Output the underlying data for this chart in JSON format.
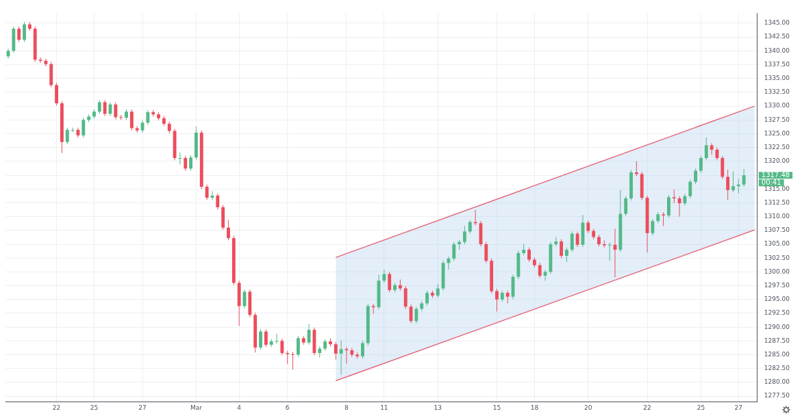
{
  "chart_data": {
    "type": "candlestick",
    "categories": [
      null,
      null,
      null,
      null,
      null,
      null,
      null,
      null,
      null,
      "22",
      null,
      null,
      null,
      null,
      null,
      null,
      "25",
      null,
      null,
      null,
      null,
      null,
      null,
      null,
      null,
      "27",
      null,
      null,
      null,
      null,
      null,
      null,
      null,
      null,
      null,
      "Mar",
      null,
      null,
      null,
      null,
      null,
      null,
      null,
      "4",
      null,
      null,
      null,
      null,
      null,
      null,
      null,
      null,
      "6",
      null,
      null,
      null,
      null,
      null,
      null,
      null,
      null,
      null,
      null,
      "8",
      null,
      null,
      null,
      null,
      null,
      null,
      "11",
      null,
      null,
      null,
      null,
      null,
      null,
      null,
      null,
      null,
      "13",
      null,
      null,
      null,
      null,
      null,
      null,
      null,
      null,
      null,
      null,
      "15",
      null,
      null,
      null,
      null,
      null,
      null,
      "18",
      null,
      null,
      null,
      null,
      null,
      null,
      null,
      null,
      null,
      "20",
      null,
      null,
      null,
      null,
      null,
      null,
      null,
      null,
      null,
      null,
      "22",
      null,
      null,
      null,
      null,
      null,
      null,
      null,
      null,
      null,
      "25",
      null,
      null,
      null,
      null,
      null,
      null,
      "27",
      null,
      null,
      null
    ],
    "ohlc": [
      [
        1339,
        1340.4,
        1338.6,
        1340
      ],
      [
        1340,
        1344.4,
        1339.6,
        1344
      ],
      [
        1344,
        1344.4,
        1341.6,
        1342
      ],
      [
        1342,
        1345.2,
        1341.6,
        1344.8
      ],
      [
        1344.8,
        1345.2,
        1343.6,
        1344
      ],
      [
        1344,
        1344.4,
        1338,
        1338.4
      ],
      [
        1338.4,
        1338.8,
        1337.8,
        1338.2
      ],
      [
        1338.2,
        1338.6,
        1337.2,
        1337.6
      ],
      [
        1337.6,
        1338,
        1333.4,
        1333.8
      ],
      [
        1333.8,
        1334.2,
        1330.1,
        1330.5
      ],
      [
        1330.5,
        1330.9,
        1321.5,
        1323.5
      ],
      [
        1323.5,
        1326.1,
        1323.1,
        1325.7
      ],
      [
        1325.7,
        1326.1,
        1325.3,
        1325.7
      ],
      [
        1325.7,
        1326.1,
        1324.3,
        1324.7
      ],
      [
        1324.7,
        1327.9,
        1324.3,
        1327.5
      ],
      [
        1327.5,
        1328.5,
        1327.1,
        1328.1
      ],
      [
        1328.1,
        1329.4,
        1327.7,
        1329
      ],
      [
        1329,
        1331.1,
        1328.6,
        1330.7
      ],
      [
        1330.7,
        1331.1,
        1328.2,
        1328.6
      ],
      [
        1328.6,
        1330.7,
        1328.2,
        1330.3
      ],
      [
        1330.3,
        1330.7,
        1327.6,
        1328
      ],
      [
        1328,
        1328.4,
        1327.5,
        1327.9
      ],
      [
        1327.9,
        1329.4,
        1327.5,
        1329
      ],
      [
        1329,
        1329.4,
        1325.6,
        1326
      ],
      [
        1326,
        1326.4,
        1325.2,
        1325.6
      ],
      [
        1325.6,
        1327.4,
        1325.2,
        1327
      ],
      [
        1327,
        1329.3,
        1326.6,
        1328.9
      ],
      [
        1328.9,
        1329.3,
        1328.1,
        1328.5
      ],
      [
        1328.5,
        1328.9,
        1327.4,
        1327.8
      ],
      [
        1327.8,
        1328.2,
        1326.4,
        1326.8
      ],
      [
        1326.8,
        1327.2,
        1325.1,
        1325.5
      ],
      [
        1325.5,
        1325.9,
        1320.2,
        1320.6
      ],
      [
        1320.6,
        1321.6,
        1319.4,
        1320.6
      ],
      [
        1320.6,
        1321,
        1318.3,
        1318.7
      ],
      [
        1318.7,
        1321.1,
        1318.3,
        1320.7
      ],
      [
        1320.7,
        1326.3,
        1320.3,
        1325.2
      ],
      [
        1325.2,
        1325.6,
        1315,
        1315.4
      ],
      [
        1315.4,
        1315.8,
        1313,
        1313.4
      ],
      [
        1313.4,
        1314.6,
        1313,
        1313.8
      ],
      [
        1313.8,
        1314.2,
        1311.3,
        1311.7
      ],
      [
        1311.7,
        1312.1,
        1307.6,
        1308
      ],
      [
        1308,
        1309.4,
        1305.7,
        1306.1
      ],
      [
        1306.1,
        1306.5,
        1297.6,
        1298
      ],
      [
        1298,
        1298.4,
        1290.2,
        1293.8
      ],
      [
        1293.8,
        1296.8,
        1293.4,
        1296.4
      ],
      [
        1296.4,
        1296.8,
        1291.8,
        1292.2
      ],
      [
        1292.2,
        1292.6,
        1285.4,
        1286.3
      ],
      [
        1286.3,
        1289.6,
        1285.9,
        1289.2
      ],
      [
        1289.2,
        1289.6,
        1286.4,
        1286.8
      ],
      [
        1286.8,
        1287.8,
        1286.4,
        1287.4
      ],
      [
        1287.4,
        1288.8,
        1287,
        1287.5
      ],
      [
        1287.5,
        1287.9,
        1284.9,
        1285.3
      ],
      [
        1285.3,
        1285.7,
        1283.3,
        1285.1
      ],
      [
        1285.1,
        1285.5,
        1282.3,
        1285
      ],
      [
        1285,
        1288.4,
        1284.6,
        1288
      ],
      [
        1288,
        1288.4,
        1286.8,
        1287.2
      ],
      [
        1287.2,
        1290.6,
        1286.8,
        1289.5
      ],
      [
        1289.5,
        1289.9,
        1284.9,
        1285.3
      ],
      [
        1285.3,
        1286.5,
        1284.5,
        1286.1
      ],
      [
        1286.1,
        1287.8,
        1285.7,
        1287.4
      ],
      [
        1287.4,
        1288,
        1286.5,
        1286.9
      ],
      [
        1286.9,
        1287.3,
        1284.1,
        1285.2
      ],
      [
        1285.2,
        1287.6,
        1281.4,
        1286
      ],
      [
        1286,
        1286.4,
        1283.4,
        1285.8
      ],
      [
        1285.8,
        1286.2,
        1284.6,
        1285
      ],
      [
        1285,
        1285.4,
        1284.3,
        1284.7
      ],
      [
        1284.7,
        1287.5,
        1284.3,
        1287.1
      ],
      [
        1287.1,
        1294.2,
        1286.7,
        1293.8
      ],
      [
        1293.8,
        1294.2,
        1292.4,
        1293.6
      ],
      [
        1293.6,
        1299.5,
        1293.2,
        1298.4
      ],
      [
        1298.4,
        1300.4,
        1298,
        1299.6
      ],
      [
        1299.6,
        1300,
        1296.3,
        1296.7
      ],
      [
        1296.7,
        1298,
        1296.3,
        1297.6
      ],
      [
        1297.6,
        1298.6,
        1296.6,
        1297
      ],
      [
        1297,
        1297.4,
        1293.3,
        1293.7
      ],
      [
        1293.7,
        1294.1,
        1290.7,
        1291.1
      ],
      [
        1291.1,
        1293.7,
        1290.7,
        1293.3
      ],
      [
        1293.3,
        1294.7,
        1292.9,
        1294.3
      ],
      [
        1294.3,
        1296.6,
        1293.9,
        1296.2
      ],
      [
        1296.2,
        1296.6,
        1295.3,
        1295.7
      ],
      [
        1295.7,
        1297.8,
        1295.3,
        1297
      ],
      [
        1297,
        1302,
        1296.6,
        1301.6
      ],
      [
        1301.6,
        1302.8,
        1300.4,
        1302.4
      ],
      [
        1302.4,
        1305.4,
        1302,
        1305
      ],
      [
        1305,
        1305.8,
        1304,
        1305.4
      ],
      [
        1305.4,
        1308.3,
        1305,
        1307.3
      ],
      [
        1307.3,
        1309.4,
        1306.9,
        1309
      ],
      [
        1309,
        1311.2,
        1308.4,
        1308.8
      ],
      [
        1308.8,
        1309.2,
        1304.6,
        1305
      ],
      [
        1305,
        1305.4,
        1301.6,
        1302
      ],
      [
        1302,
        1302.4,
        1296.1,
        1296.5
      ],
      [
        1296.5,
        1296.9,
        1292.8,
        1295
      ],
      [
        1295,
        1296.6,
        1294.6,
        1296.2
      ],
      [
        1296.2,
        1296.6,
        1294.3,
        1295.5
      ],
      [
        1295.5,
        1299.5,
        1295.1,
        1299.1
      ],
      [
        1299.1,
        1303.8,
        1298.7,
        1303.4
      ],
      [
        1303.4,
        1305.1,
        1303,
        1304
      ],
      [
        1304,
        1304.4,
        1301.8,
        1302.2
      ],
      [
        1302.2,
        1302.6,
        1300.8,
        1301.2
      ],
      [
        1301.2,
        1301.6,
        1298.9,
        1299.3
      ],
      [
        1299.3,
        1300.4,
        1298.4,
        1300
      ],
      [
        1300,
        1305.4,
        1299.6,
        1305
      ],
      [
        1305,
        1306.3,
        1304.6,
        1305.5
      ],
      [
        1305.5,
        1305.9,
        1302.5,
        1302.9
      ],
      [
        1302.9,
        1304.4,
        1301.8,
        1304
      ],
      [
        1304,
        1307.3,
        1303.6,
        1306.9
      ],
      [
        1306.9,
        1307.3,
        1304.5,
        1304.9
      ],
      [
        1304.9,
        1310.3,
        1304.5,
        1308.9
      ],
      [
        1308.9,
        1309.3,
        1307,
        1307.4
      ],
      [
        1307.4,
        1307.8,
        1305.9,
        1306.3
      ],
      [
        1306.3,
        1306.7,
        1304.6,
        1305
      ],
      [
        1305,
        1305.7,
        1304.4,
        1304.8
      ],
      [
        1304.8,
        1305.3,
        1302,
        1304.9
      ],
      [
        1304.9,
        1307.8,
        1299,
        1304
      ],
      [
        1304,
        1314.8,
        1303.6,
        1310.5
      ],
      [
        1310.5,
        1313.7,
        1310.1,
        1313.3
      ],
      [
        1313.3,
        1318.4,
        1312.9,
        1318
      ],
      [
        1318,
        1320,
        1317.3,
        1317.7
      ],
      [
        1317.7,
        1318.1,
        1313,
        1313.4
      ],
      [
        1313.4,
        1313.8,
        1303.5,
        1307
      ],
      [
        1307,
        1309.6,
        1306.6,
        1309.2
      ],
      [
        1309.2,
        1310.8,
        1308.8,
        1310.4
      ],
      [
        1310.4,
        1310.8,
        1308.3,
        1310.2
      ],
      [
        1310.2,
        1313.9,
        1309.8,
        1313.5
      ],
      [
        1313.5,
        1314.9,
        1312.4,
        1313.3
      ],
      [
        1313.3,
        1313.7,
        1310,
        1312.4
      ],
      [
        1312.4,
        1314.1,
        1312,
        1313.7
      ],
      [
        1313.7,
        1316.7,
        1313.3,
        1316.3
      ],
      [
        1316.3,
        1318.7,
        1315.9,
        1318.3
      ],
      [
        1318.3,
        1321,
        1317.9,
        1320.6
      ],
      [
        1320.6,
        1324.3,
        1320.2,
        1322.9
      ],
      [
        1322.9,
        1323.3,
        1321.2,
        1322.1
      ],
      [
        1322.1,
        1322.5,
        1320.2,
        1320.6
      ],
      [
        1320.6,
        1321,
        1316.8,
        1317.2
      ],
      [
        1317.2,
        1318.5,
        1313,
        1314.8
      ],
      [
        1314.8,
        1318.2,
        1314.4,
        1315.5
      ],
      [
        1315.5,
        1316.8,
        1314.2,
        1315.8
      ],
      [
        1315.8,
        1318.6,
        1315.4,
        1317.48
      ],
      null,
      null
    ],
    "series": [
      {
        "type": "line",
        "color": "#ef5461",
        "values": [
          null,
          null,
          null,
          null,
          null,
          null,
          null,
          null,
          null,
          null,
          null,
          null,
          null,
          null,
          null,
          null,
          null,
          null,
          null,
          null,
          null,
          null,
          null,
          null,
          null,
          null,
          null,
          null,
          null,
          null,
          null,
          null,
          null,
          null,
          null,
          null,
          null,
          null,
          null,
          null,
          null,
          null,
          null,
          null,
          null,
          null,
          null,
          null,
          null,
          null,
          null,
          null,
          null,
          null,
          null,
          null,
          null,
          null,
          null,
          null,
          null,
          1302.6,
          null,
          null,
          null,
          null,
          null,
          null,
          null,
          null,
          null,
          null,
          null,
          null,
          null,
          null,
          null,
          null,
          null,
          null,
          null,
          null,
          null,
          null,
          null,
          null,
          null,
          null,
          null,
          null,
          null,
          null,
          null,
          null,
          null,
          null,
          null,
          null,
          null,
          null,
          null,
          null,
          null,
          null,
          null,
          null,
          null,
          null,
          null,
          null,
          null,
          null,
          null,
          null,
          null,
          null,
          null,
          null,
          null,
          null,
          null,
          null,
          null,
          null,
          null,
          null,
          null,
          null,
          null,
          null,
          null,
          null,
          null,
          null,
          null,
          null,
          null,
          null,
          null,
          1330
        ],
        "upper": [
          null,
          null,
          null,
          null,
          null,
          null,
          null,
          null,
          null,
          null,
          null,
          null,
          null,
          null,
          null,
          null,
          null,
          null,
          null,
          null,
          null,
          null,
          null,
          null,
          null,
          null,
          null,
          null,
          null,
          null,
          null,
          null,
          null,
          null,
          null,
          null,
          null,
          null,
          null,
          null,
          null,
          null,
          null,
          null,
          null,
          null,
          null,
          null,
          null,
          null,
          null,
          null,
          null,
          null,
          null,
          null,
          null,
          null,
          null,
          null,
          null,
          1302.6,
          null,
          null,
          null,
          null,
          null,
          null,
          null,
          null,
          null,
          null,
          null,
          null,
          null,
          null,
          null,
          null,
          null,
          null,
          null,
          null,
          null,
          null,
          null,
          null,
          null,
          null,
          null,
          null,
          null,
          null,
          null,
          null,
          null,
          null,
          null,
          null,
          null,
          null,
          null,
          null,
          null,
          null,
          null,
          null,
          null,
          null,
          null,
          null,
          null,
          null,
          null,
          null,
          null,
          null,
          null,
          null,
          null,
          null,
          null,
          null,
          null,
          null,
          null,
          null,
          null,
          null,
          null,
          null,
          null,
          null,
          null,
          null,
          null,
          null,
          null,
          null,
          null,
          1330
        ],
        "lower": [
          null,
          null,
          null,
          null,
          null,
          null,
          null,
          null,
          null,
          null,
          null,
          null,
          null,
          null,
          null,
          null,
          null,
          null,
          null,
          null,
          null,
          null,
          null,
          null,
          null,
          null,
          null,
          null,
          null,
          null,
          null,
          null,
          null,
          null,
          null,
          null,
          null,
          null,
          null,
          null,
          null,
          null,
          null,
          null,
          null,
          null,
          null,
          null,
          null,
          null,
          null,
          null,
          null,
          null,
          null,
          null,
          null,
          null,
          null,
          null,
          null,
          1280.3,
          null,
          null,
          null,
          null,
          null,
          null,
          null,
          null,
          null,
          null,
          null,
          null,
          null,
          null,
          null,
          null,
          null,
          null,
          null,
          null,
          null,
          null,
          null,
          null,
          null,
          null,
          null,
          null,
          null,
          null,
          null,
          null,
          null,
          null,
          null,
          null,
          null,
          null,
          null,
          null,
          null,
          null,
          null,
          null,
          null,
          null,
          null,
          null,
          null,
          null,
          null,
          null,
          null,
          null,
          null,
          null,
          null,
          null,
          null,
          null,
          null,
          null,
          null,
          null,
          null,
          null,
          null,
          null,
          null,
          null,
          null,
          null,
          null,
          null,
          null,
          null,
          null,
          1307.6
        ]
      },
      {
        "type": "line",
        "color": "#ef5461",
        "values": [
          null,
          null,
          null,
          null,
          null,
          null,
          null,
          null,
          null,
          null,
          null,
          null,
          null,
          null,
          null,
          null,
          null,
          null,
          null,
          null,
          null,
          null,
          null,
          null,
          null,
          null,
          null,
          null,
          null,
          null,
          null,
          null,
          null,
          null,
          null,
          null,
          null,
          null,
          null,
          null,
          null,
          null,
          null,
          null,
          null,
          null,
          null,
          null,
          null,
          null,
          null,
          null,
          null,
          null,
          null,
          null,
          null,
          null,
          null,
          null,
          null,
          1280.3,
          null,
          null,
          null,
          null,
          null,
          null,
          null,
          null,
          null,
          null,
          null,
          null,
          null,
          null,
          null,
          null,
          null,
          null,
          null,
          null,
          null,
          null,
          null,
          null,
          null,
          null,
          null,
          null,
          null,
          null,
          null,
          null,
          null,
          null,
          null,
          null,
          null,
          null,
          null,
          null,
          null,
          null,
          null,
          null,
          null,
          null,
          null,
          null,
          null,
          null,
          null,
          null,
          null,
          null,
          null,
          null,
          null,
          null,
          null,
          null,
          null,
          null,
          null,
          null,
          null,
          null,
          null,
          null,
          null,
          null,
          null,
          null,
          null,
          null,
          null,
          null,
          null,
          1307.6
        ]
      }
    ],
    "ylim": [
      1276.5,
      1346.8
    ],
    "yticks": [
      {
        "value": 1277.5,
        "label": "1277.50"
      },
      {
        "value": 1280,
        "label": "1280.00"
      },
      {
        "value": 1282.5,
        "label": "1282.50"
      },
      {
        "value": 1285,
        "label": "1285.00"
      },
      {
        "value": 1287.5,
        "label": "1287.50"
      },
      {
        "value": 1290,
        "label": "1290.00"
      },
      {
        "value": 1292.5,
        "label": "1292.50"
      },
      {
        "value": 1295,
        "label": "1295.00"
      },
      {
        "value": 1297.5,
        "label": "1297.50"
      },
      {
        "value": 1300,
        "label": "1300.00"
      },
      {
        "value": 1302.5,
        "label": "1302.50"
      },
      {
        "value": 1305,
        "label": "1305.00"
      },
      {
        "value": 1307.5,
        "label": "1307.50"
      },
      {
        "value": 1310,
        "label": "1310.00"
      },
      {
        "value": 1312.5,
        "label": "1312.50"
      },
      {
        "value": 1315,
        "label": "1315.00"
      },
      {
        "value": 1317.5,
        "label": null
      },
      {
        "value": 1320,
        "label": "1320.00"
      },
      {
        "value": 1322.5,
        "label": "1322.50"
      },
      {
        "value": 1325,
        "label": "1325.00"
      },
      {
        "value": 1327.5,
        "label": "1327.50"
      },
      {
        "value": 1330,
        "label": "1330.00"
      },
      {
        "value": 1332.5,
        "label": "1332.50"
      },
      {
        "value": 1335,
        "label": "1335.00"
      },
      {
        "value": 1337.5,
        "label": "1337.50"
      },
      {
        "value": 1340,
        "label": "1340.00"
      },
      {
        "value": 1342.5,
        "label": "1342.50"
      },
      {
        "value": 1345,
        "label": "1345.00"
      }
    ],
    "annotations": [
      "1317.48",
      "00:41"
    ],
    "grid": true,
    "legend": false
  }
}
